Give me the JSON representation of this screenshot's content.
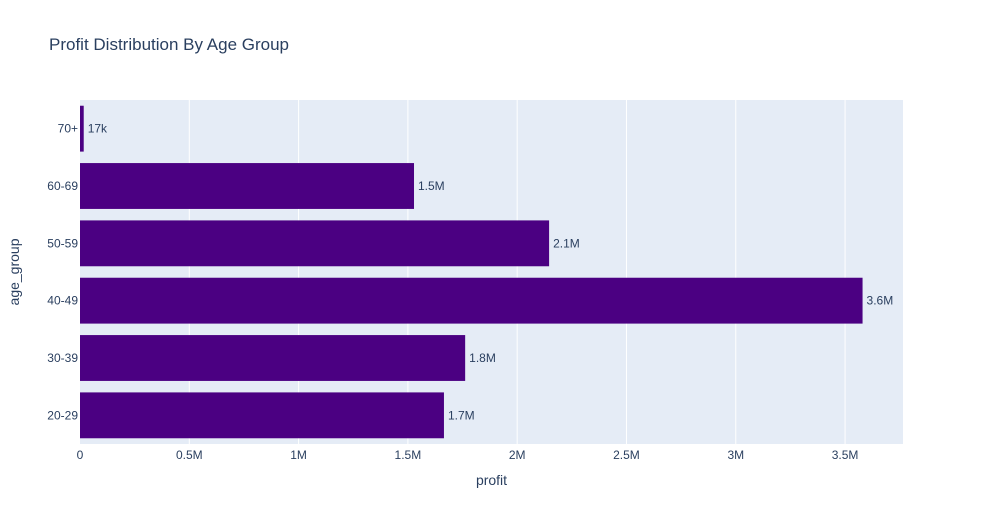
{
  "chart_data": {
    "type": "bar",
    "orientation": "horizontal",
    "title": "Profit Distribution By Age Group",
    "xlabel": "profit",
    "ylabel": "age_group",
    "categories": [
      "20-29",
      "30-39",
      "40-49",
      "50-59",
      "60-69",
      "70+"
    ],
    "values": [
      1665000,
      1762000,
      3580000,
      2146000,
      1528000,
      17000
    ],
    "data_labels": [
      "1.7M",
      "1.8M",
      "3.6M",
      "2.1M",
      "1.5M",
      "17k"
    ],
    "xlim": [
      0,
      3765000
    ],
    "x_ticks": [
      0,
      500000,
      1000000,
      1500000,
      2000000,
      2500000,
      3000000,
      3500000
    ],
    "x_tick_labels": [
      "0",
      "0.5M",
      "1M",
      "1.5M",
      "2M",
      "2.5M",
      "3M",
      "3.5M"
    ],
    "grid": true,
    "legend": "none",
    "colors": {
      "bar": "#4b0082",
      "plot_background": "#e5ecf6",
      "gridline": "#ffffff",
      "text": "#2a3f5f"
    }
  }
}
